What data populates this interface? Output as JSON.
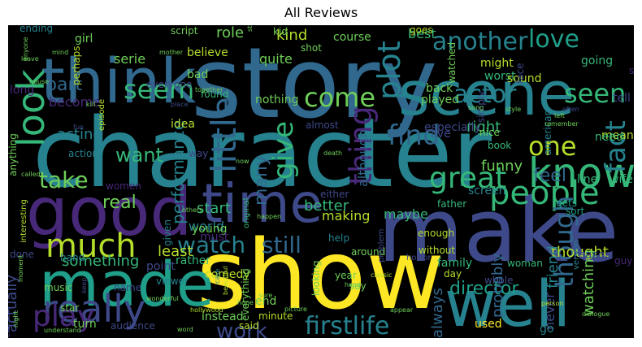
{
  "figure": {
    "title": "All Reviews"
  },
  "palette": [
    "#440154",
    "#482878",
    "#3e4989",
    "#31688e",
    "#26828e",
    "#1f9e89",
    "#35b779",
    "#6ece58",
    "#b5de2b",
    "#fde725"
  ],
  "words": [
    {
      "text": "character",
      "color": "#26828e",
      "vertical": false
    },
    {
      "text": "story",
      "color": "#31688e",
      "vertical": false
    },
    {
      "text": "show",
      "color": "#fde725",
      "vertical": false
    },
    {
      "text": "make",
      "color": "#3e4989",
      "vertical": false
    },
    {
      "text": "time",
      "color": "#3e4989",
      "vertical": false
    },
    {
      "text": "scene",
      "color": "#26828e",
      "vertical": false
    },
    {
      "text": "think",
      "color": "#31688e",
      "vertical": false
    },
    {
      "text": "good",
      "color": "#482878",
      "vertical": false
    },
    {
      "text": "made",
      "color": "#1f9e89",
      "vertical": false
    },
    {
      "text": "well",
      "color": "#26828e",
      "vertical": false
    },
    {
      "text": "really",
      "color": "#3e4989",
      "vertical": false
    },
    {
      "text": "much",
      "color": "#b5de2b",
      "vertical": false
    },
    {
      "text": "people",
      "color": "#35b779",
      "vertical": false
    },
    {
      "text": "know",
      "color": "#35b779",
      "vertical": false
    },
    {
      "text": "another",
      "color": "#26828e",
      "vertical": false
    },
    {
      "text": "love",
      "color": "#1f9e89",
      "vertical": false
    },
    {
      "text": "look",
      "color": "#35b779",
      "vertical": true
    },
    {
      "text": "seem",
      "color": "#35b779",
      "vertical": false
    },
    {
      "text": "come",
      "color": "#6ece58",
      "vertical": false
    },
    {
      "text": "actor",
      "color": "#26828e",
      "vertical": false
    },
    {
      "text": "seen",
      "color": "#35b779",
      "vertical": false
    },
    {
      "text": "great",
      "color": "#35b779",
      "vertical": false
    },
    {
      "text": "find",
      "color": "#31688e",
      "vertical": false
    },
    {
      "text": "one",
      "color": "#b5de2b",
      "vertical": false
    },
    {
      "text": "fact",
      "color": "#26828e",
      "vertical": true
    },
    {
      "text": "little",
      "color": "#31688e",
      "vertical": true
    },
    {
      "text": "give",
      "color": "#35b779",
      "vertical": true
    },
    {
      "text": "thing",
      "color": "#482878",
      "vertical": true
    },
    {
      "text": "plot",
      "color": "#26828e",
      "vertical": true
    },
    {
      "text": "part",
      "color": "#31688e",
      "vertical": false
    },
    {
      "text": "take",
      "color": "#6ece58",
      "vertical": false
    },
    {
      "text": "want",
      "color": "#35b779",
      "vertical": false
    },
    {
      "text": "watch",
      "color": "#26828e",
      "vertical": false
    },
    {
      "text": "still",
      "color": "#31688e",
      "vertical": false
    },
    {
      "text": "work",
      "color": "#3e4989",
      "vertical": false
    },
    {
      "text": "firstlife",
      "color": "#26828e",
      "vertical": false
    },
    {
      "text": "play",
      "color": "#482878",
      "vertical": false
    },
    {
      "text": "though",
      "color": "#31688e",
      "vertical": true
    },
    {
      "text": "director",
      "color": "#1f9e89",
      "vertical": false
    },
    {
      "text": "thought",
      "color": "#b5de2b",
      "vertical": false
    },
    {
      "text": "many",
      "color": "#31688e",
      "vertical": true
    },
    {
      "text": "always",
      "color": "#31688e",
      "vertical": true
    },
    {
      "text": "something",
      "color": "#35b779",
      "vertical": false
    },
    {
      "text": "least",
      "color": "#b5de2b",
      "vertical": false
    },
    {
      "text": "world",
      "color": "#26828e",
      "vertical": false
    },
    {
      "text": "start",
      "color": "#35b779",
      "vertical": false
    },
    {
      "text": "real",
      "color": "#6ece58",
      "vertical": false
    },
    {
      "text": "performance",
      "color": "#26828e",
      "vertical": true
    },
    {
      "text": "better",
      "color": "#35b779",
      "vertical": false
    },
    {
      "text": "acting",
      "color": "#26828e",
      "vertical": false
    },
    {
      "text": "making",
      "color": "#b5de2b",
      "vertical": false
    },
    {
      "text": "maybe",
      "color": "#35b779",
      "vertical": false
    },
    {
      "text": "funny",
      "color": "#6ece58",
      "vertical": false
    },
    {
      "text": "right",
      "color": "#35b779",
      "vertical": false
    },
    {
      "text": "feel",
      "color": "#31688e",
      "vertical": false
    },
    {
      "text": "although",
      "color": "#31688e",
      "vertical": true
    },
    {
      "text": "probably",
      "color": "#31688e",
      "vertical": true
    },
    {
      "text": "watching",
      "color": "#6ece58",
      "vertical": true
    },
    {
      "text": "friend",
      "color": "#26828e",
      "vertical": true
    },
    {
      "text": "never",
      "color": "#3e4989",
      "vertical": true
    },
    {
      "text": "go",
      "color": "#26828e",
      "vertical": false
    },
    {
      "text": "actually",
      "color": "#3e4989",
      "vertical": true
    },
    {
      "text": "point",
      "color": "#3e4989",
      "vertical": false
    },
    {
      "text": "rather",
      "color": "#35b779",
      "vertical": false
    },
    {
      "text": "kind",
      "color": "#b5de2b",
      "vertical": false
    },
    {
      "text": "best",
      "color": "#35b779",
      "vertical": false
    },
    {
      "text": "role",
      "color": "#6ece58",
      "vertical": false
    },
    {
      "text": "course",
      "color": "#6ece58",
      "vertical": false
    },
    {
      "text": "going",
      "color": "#35b779",
      "vertical": false
    },
    {
      "text": "girl",
      "color": "#6ece58",
      "vertical": false
    },
    {
      "text": "serie",
      "color": "#6ece58",
      "vertical": false
    },
    {
      "text": "believe",
      "color": "#b5de2b",
      "vertical": false
    },
    {
      "text": "quite",
      "color": "#6ece58",
      "vertical": false
    },
    {
      "text": "might",
      "color": "#b5de2b",
      "vertical": false
    },
    {
      "text": "worst",
      "color": "#35b779",
      "vertical": false
    },
    {
      "text": "sound",
      "color": "#b5de2b",
      "vertical": false
    },
    {
      "text": "nothing",
      "color": "#6ece58",
      "vertical": false
    },
    {
      "text": "back",
      "color": "#6ece58",
      "vertical": false
    },
    {
      "text": "played",
      "color": "#6ece58",
      "vertical": false
    },
    {
      "text": "long",
      "color": "#482878",
      "vertical": false
    },
    {
      "text": "become",
      "color": "#482878",
      "vertical": false
    },
    {
      "text": "everyone",
      "color": "#3e4989",
      "vertical": false
    },
    {
      "text": "found",
      "color": "#35b779",
      "vertical": false
    },
    {
      "text": "bad",
      "color": "#6ece58",
      "vertical": false
    },
    {
      "text": "almost",
      "color": "#3e4989",
      "vertical": false
    },
    {
      "text": "especially",
      "color": "#3e4989",
      "vertical": false
    },
    {
      "text": "idea",
      "color": "#b5de2b",
      "vertical": false
    },
    {
      "text": "way",
      "color": "#3e4989",
      "vertical": false
    },
    {
      "text": "live",
      "color": "#3e4989",
      "vertical": false
    },
    {
      "text": "nice",
      "color": "#6ece58",
      "vertical": false
    },
    {
      "text": "book",
      "color": "#35b779",
      "vertical": false
    },
    {
      "text": "line",
      "color": "#35b779",
      "vertical": false
    },
    {
      "text": "wife",
      "color": "#35b779",
      "vertical": false
    },
    {
      "text": "mean",
      "color": "#b5de2b",
      "vertical": false
    },
    {
      "text": "need",
      "color": "#35b779",
      "vertical": false
    },
    {
      "text": "tell",
      "color": "#3e4989",
      "vertical": false
    },
    {
      "text": "women",
      "color": "#482878",
      "vertical": false
    },
    {
      "text": "episode",
      "color": "#b5de2b",
      "vertical": true
    },
    {
      "text": "action",
      "color": "#26828e",
      "vertical": false
    },
    {
      "text": "father",
      "color": "#35b779",
      "vertical": false
    },
    {
      "text": "screen",
      "color": "#26828e",
      "vertical": false
    },
    {
      "text": "gets",
      "color": "#1f9e89",
      "vertical": false
    },
    {
      "text": "sort",
      "color": "#1f9e89",
      "vertical": false
    },
    {
      "text": "either",
      "color": "#3e4989",
      "vertical": false
    },
    {
      "text": "given",
      "color": "#26828e",
      "vertical": true
    },
    {
      "text": "young",
      "color": "#6ece58",
      "vertical": false
    },
    {
      "text": "original",
      "color": "#35b779",
      "vertical": true
    },
    {
      "text": "enough",
      "color": "#b5de2b",
      "vertical": false
    },
    {
      "text": "help",
      "color": "#26828e",
      "vertical": false
    },
    {
      "text": "must",
      "color": "#482878",
      "vertical": false
    },
    {
      "text": "version",
      "color": "#26828e",
      "vertical": true
    },
    {
      "text": "guy",
      "color": "#482878",
      "vertical": false
    },
    {
      "text": "interesting",
      "color": "#b5de2b",
      "vertical": true
    },
    {
      "text": "hand",
      "color": "#26828e",
      "vertical": false
    },
    {
      "text": "horror",
      "color": "#3e4989",
      "vertical": false
    },
    {
      "text": "woman",
      "color": "#35b779",
      "vertical": false
    },
    {
      "text": "reason",
      "color": "#3e4989",
      "vertical": false
    },
    {
      "text": "family",
      "color": "#35b779",
      "vertical": false
    },
    {
      "text": "whole",
      "color": "#3e4989",
      "vertical": false
    },
    {
      "text": "day",
      "color": "#b5de2b",
      "vertical": false
    },
    {
      "text": "without",
      "color": "#b5de2b",
      "vertical": false
    },
    {
      "text": "around",
      "color": "#6ece58",
      "vertical": false
    },
    {
      "text": "year",
      "color": "#6ece58",
      "vertical": false
    },
    {
      "text": "say",
      "color": "#6ece58",
      "vertical": false
    },
    {
      "text": "looking",
      "color": "#6ece58",
      "vertical": true
    },
    {
      "text": "comedy",
      "color": "#b5de2b",
      "vertical": false
    },
    {
      "text": "viewer",
      "color": "#26828e",
      "vertical": false
    },
    {
      "text": "name",
      "color": "#3e4989",
      "vertical": false
    },
    {
      "text": "music",
      "color": "#6ece58",
      "vertical": false
    },
    {
      "text": "star",
      "color": "#6ece58",
      "vertical": false
    },
    {
      "text": "turn",
      "color": "#6ece58",
      "vertical": false
    },
    {
      "text": "audience",
      "color": "#3e4989",
      "vertical": false
    },
    {
      "text": "instead",
      "color": "#6ece58",
      "vertical": false
    },
    {
      "text": "everything",
      "color": "#6ece58",
      "vertical": true
    },
    {
      "text": "end",
      "color": "#6ece58",
      "vertical": false
    },
    {
      "text": "minute",
      "color": "#b5de2b",
      "vertical": false
    },
    {
      "text": "said",
      "color": "#b5de2b",
      "vertical": false
    },
    {
      "text": "used",
      "color": "#fde725",
      "vertical": false
    },
    {
      "text": "ending",
      "color": "#26828e",
      "vertical": false
    },
    {
      "text": "perhaps",
      "color": "#b5de2b",
      "vertical": true
    },
    {
      "text": "script",
      "color": "#6ece58",
      "vertical": false
    },
    {
      "text": "goes",
      "color": "#b5de2b",
      "vertical": false
    },
    {
      "text": "shot",
      "color": "#6ece58",
      "vertical": false
    },
    {
      "text": "watched",
      "color": "#6ece58",
      "vertical": true
    },
    {
      "text": "face",
      "color": "#3e4989",
      "vertical": true
    },
    {
      "text": "american",
      "color": "#26828e",
      "vertical": true
    },
    {
      "text": "anything",
      "color": "#6ece58",
      "vertical": true
    },
    {
      "text": "done",
      "color": "#3e4989",
      "vertical": false
    },
    {
      "text": "kid",
      "color": "#6ece58",
      "vertical": false
    },
    {
      "text": "simply",
      "color": "#3e4989",
      "vertical": true
    },
    {
      "text": "problem",
      "color": "#3e4989",
      "vertical": true
    },
    {
      "text": "someone",
      "color": "#482878",
      "vertical": false
    },
    {
      "text": "case",
      "color": "#26828e",
      "vertical": true
    },
    {
      "text": "hollywood",
      "color": "#b5de2b",
      "vertical": false
    },
    {
      "text": "classic",
      "color": "#b5de2b",
      "vertical": false
    },
    {
      "text": "person",
      "color": "#b5de2b",
      "vertical": false
    },
    {
      "text": "dialogue",
      "color": "#6ece58",
      "vertical": false
    },
    {
      "text": "excellent",
      "color": "#3e4989",
      "vertical": true
    },
    {
      "text": "understand",
      "color": "#6ece58",
      "vertical": false
    },
    {
      "text": "word",
      "color": "#6ece58",
      "vertical": false
    },
    {
      "text": "hope",
      "color": "#6ece58",
      "vertical": false
    },
    {
      "text": "picture",
      "color": "#6ece58",
      "vertical": false
    },
    {
      "text": "appear",
      "color": "#6ece58",
      "vertical": false
    },
    {
      "text": "head",
      "color": "#6ece58",
      "vertical": false
    },
    {
      "text": "beautiful",
      "color": "#b5de2b",
      "vertical": true
    },
    {
      "text": "often",
      "color": "#3e4989",
      "vertical": false
    },
    {
      "text": "style",
      "color": "#6ece58",
      "vertical": false
    },
    {
      "text": "song",
      "color": "#6ece58",
      "vertical": false
    },
    {
      "text": "death",
      "color": "#6ece58",
      "vertical": false
    },
    {
      "text": "left",
      "color": "#6ece58",
      "vertical": false
    },
    {
      "text": "remember",
      "color": "#6ece58",
      "vertical": false
    },
    {
      "text": "others",
      "color": "#6ece58",
      "vertical": false
    },
    {
      "text": "happen",
      "color": "#6ece58",
      "vertical": false
    },
    {
      "text": "sure",
      "color": "#6ece58",
      "vertical": false
    },
    {
      "text": "now",
      "color": "#6ece58",
      "vertical": false
    },
    {
      "text": "mind",
      "color": "#6ece58",
      "vertical": false
    },
    {
      "text": "mother",
      "color": "#6ece58",
      "vertical": false
    },
    {
      "text": "together",
      "color": "#6ece58",
      "vertical": false
    },
    {
      "text": "leave",
      "color": "#6ece58",
      "vertical": false
    },
    {
      "text": "anyone",
      "color": "#6ece58",
      "vertical": true
    },
    {
      "text": "house",
      "color": "#6ece58",
      "vertical": false
    },
    {
      "text": "kill",
      "color": "#6ece58",
      "vertical": false
    },
    {
      "text": "place",
      "color": "#3e4989",
      "vertical": false
    },
    {
      "text": "fun",
      "color": "#3e4989",
      "vertical": false
    },
    {
      "text": "called",
      "color": "#6ece58",
      "vertical": false
    },
    {
      "text": "moment",
      "color": "#6ece58",
      "vertical": true
    },
    {
      "text": "wonderful",
      "color": "#6ece58",
      "vertical": false
    },
    {
      "text": "night",
      "color": "#6ece58",
      "vertical": true
    },
    {
      "text": "keep",
      "color": "#3e4989",
      "vertical": true
    },
    {
      "text": "stupid",
      "color": "#6ece58",
      "vertical": true
    },
    {
      "text": "awaken",
      "color": "#6ece58",
      "vertical": false
    }
  ]
}
